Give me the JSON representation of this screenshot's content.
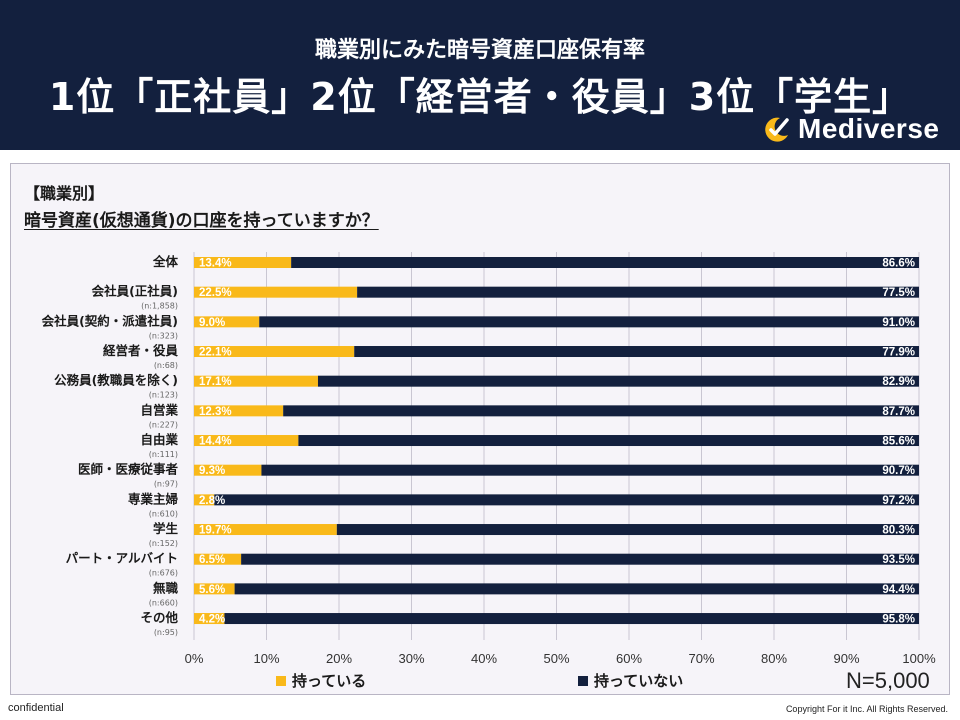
{
  "header": {
    "subtitle": "職業別にみた暗号資産口座保有率",
    "headline": "1位「正社員」2位「経営者・役員」3位「学生」",
    "logo_text": "Mediverse",
    "logo_icon": "moon-check-logo-icon"
  },
  "question": {
    "category": "【職業別】",
    "text": "暗号資産(仮想通貨)の口座を持っていますか？"
  },
  "legend": {
    "yes": "持っている",
    "no": "持っていない"
  },
  "sample_size": "N=5,000",
  "footer": {
    "left": "confidential",
    "right": "Copyright For it Inc. All Rights Reserved."
  },
  "colors": {
    "header_bg": "#13203e",
    "yes": "#f9b91a",
    "no": "#13203e"
  },
  "chart_data": {
    "type": "bar",
    "orientation": "horizontal",
    "stacked": true,
    "percent": true,
    "categories": [
      "全体",
      "会社員(正社員)",
      "会社員(契約・派遣社員)",
      "経営者・役員",
      "公務員(教職員を除く)",
      "自営業",
      "自由業",
      "医師・医療従事者",
      "専業主婦",
      "学生",
      "パート・アルバイト",
      "無職",
      "その他"
    ],
    "sublabels": [
      "",
      "(n:1,858)",
      "(n:323)",
      "(n:68)",
      "(n:123)",
      "(n:227)",
      "(n:111)",
      "(n:97)",
      "(n:610)",
      "(n:152)",
      "(n:676)",
      "(n:660)",
      "(n:95)"
    ],
    "series": [
      {
        "name": "持っている",
        "values": [
          13.4,
          22.5,
          9.0,
          22.1,
          17.1,
          12.3,
          14.4,
          9.3,
          2.8,
          19.7,
          6.5,
          5.6,
          4.2
        ]
      },
      {
        "name": "持っていない",
        "values": [
          86.6,
          77.5,
          91.0,
          77.9,
          82.9,
          87.7,
          85.6,
          90.7,
          97.2,
          80.3,
          93.5,
          94.4,
          95.8
        ]
      }
    ],
    "xlim": [
      0,
      100
    ],
    "xticks": [
      "0%",
      "10%",
      "20%",
      "30%",
      "40%",
      "50%",
      "60%",
      "70%",
      "80%",
      "90%",
      "100%"
    ],
    "grid": true,
    "legend_position": "bottom"
  }
}
